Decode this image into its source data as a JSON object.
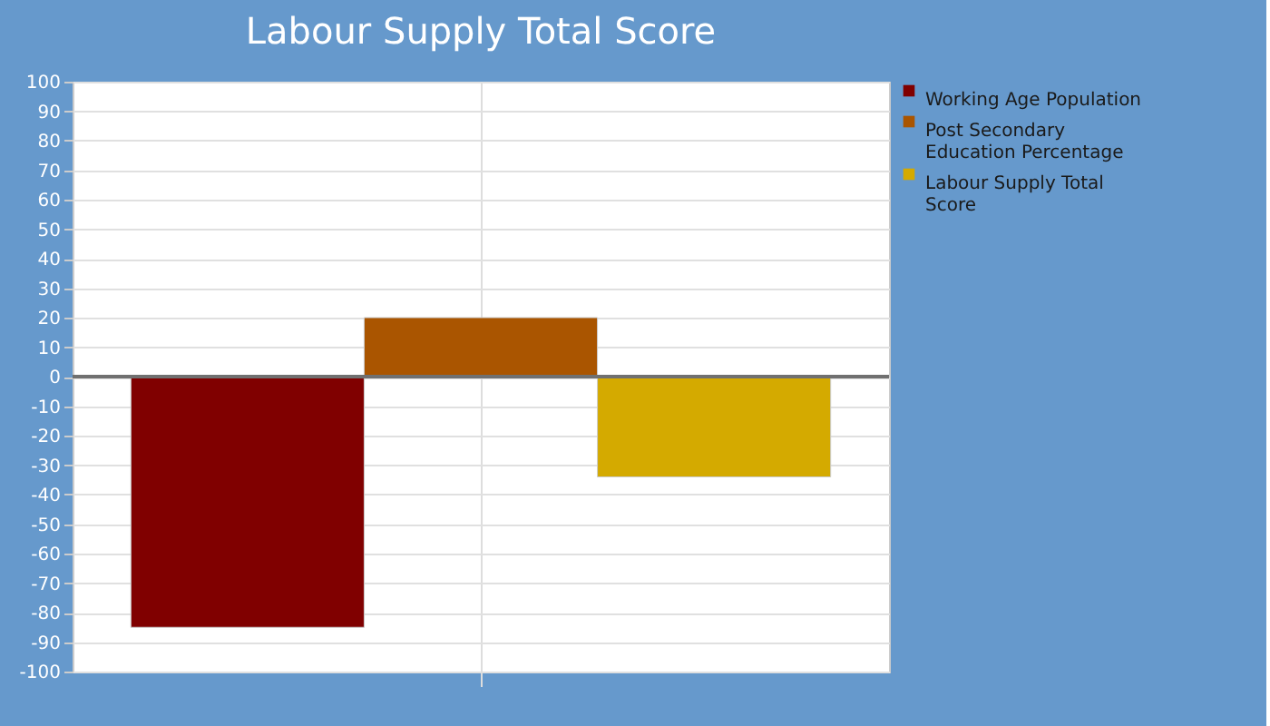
{
  "chart_data": {
    "type": "bar",
    "title": "Labour Supply Total Score",
    "categories": [
      null
    ],
    "series": [
      {
        "name": "Working Age Population",
        "color": "#800000",
        "values": [
          -85
        ]
      },
      {
        "name": "Post Secondary Education Percentage",
        "color": "#aa5500",
        "values": [
          20
        ]
      },
      {
        "name": "Labour Supply Total Score",
        "color": "#d4aa00",
        "values": [
          -34
        ]
      }
    ],
    "ylim": [
      -100,
      100
    ],
    "yticks": [
      -100,
      -90,
      -80,
      -70,
      -60,
      -50,
      -40,
      -30,
      -20,
      -10,
      0,
      10,
      20,
      30,
      40,
      50,
      60,
      70,
      80,
      90,
      100
    ],
    "ref_lines": [
      {
        "axis": "y",
        "value": 0,
        "color": "#707070"
      }
    ],
    "grid": true,
    "legend": "top right"
  }
}
